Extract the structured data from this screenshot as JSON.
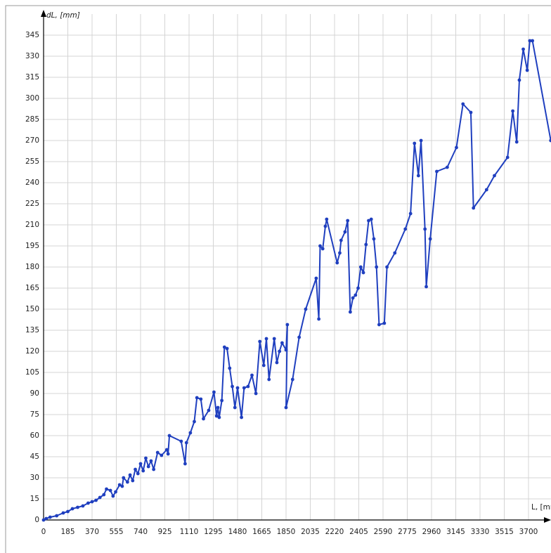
{
  "chart_data": {
    "type": "line",
    "x_label": "L, [mm",
    "y_label": "dL, [mm]",
    "xlim": [
      0,
      3870
    ],
    "ylim": [
      0,
      360
    ],
    "grid": true,
    "xticks": [
      0,
      185,
      370,
      555,
      740,
      925,
      1110,
      1295,
      1480,
      1665,
      1850,
      2035,
      2220,
      2405,
      2590,
      2775,
      2960,
      3145,
      3330,
      3515,
      3700
    ],
    "yticks": [
      0,
      15,
      30,
      45,
      60,
      75,
      90,
      105,
      120,
      135,
      150,
      165,
      180,
      195,
      210,
      225,
      240,
      255,
      270,
      285,
      300,
      315,
      330,
      345
    ],
    "series": [
      {
        "color": "#1f3fbf",
        "x": [
          0,
          20,
          50,
          100,
          150,
          185,
          220,
          260,
          300,
          340,
          370,
          400,
          430,
          460,
          480,
          510,
          530,
          550,
          580,
          600,
          610,
          640,
          660,
          680,
          700,
          720,
          740,
          760,
          780,
          800,
          820,
          840,
          870,
          900,
          940,
          950,
          960,
          1050,
          1080,
          1090,
          1120,
          1150,
          1170,
          1200,
          1220,
          1260,
          1300,
          1320,
          1330,
          1340,
          1360,
          1380,
          1400,
          1420,
          1440,
          1460,
          1480,
          1510,
          1530,
          1560,
          1590,
          1620,
          1650,
          1680,
          1700,
          1720,
          1760,
          1780,
          1800,
          1820,
          1850,
          1860,
          1850,
          1900,
          1950,
          2000,
          2080,
          2100,
          2110,
          2130,
          2150,
          2160,
          2240,
          2260,
          2270,
          2300,
          2320,
          2340,
          2360,
          2380,
          2400,
          2420,
          2440,
          2460,
          2480,
          2500,
          2520,
          2540,
          2560,
          2600,
          2620,
          2680,
          2760,
          2800,
          2830,
          2860,
          2880,
          2910,
          2920,
          2950,
          3000,
          3080,
          3150,
          3200,
          3260,
          3280,
          3380,
          3440,
          3540,
          3580,
          3610,
          3630,
          3660,
          3690,
          3710,
          3730,
          3870
        ],
        "values": [
          0,
          1,
          2,
          3,
          5,
          6,
          8,
          9,
          10,
          12,
          13,
          14,
          16,
          18,
          22,
          21,
          17,
          20,
          25,
          24,
          30,
          27,
          32,
          28,
          36,
          33,
          40,
          35,
          44,
          38,
          42,
          36,
          48,
          46,
          50,
          47,
          60,
          56,
          40,
          55,
          62,
          70,
          87,
          86,
          72,
          78,
          91,
          74,
          80,
          73,
          85,
          123,
          122,
          108,
          95,
          80,
          94,
          73,
          94,
          95,
          103,
          90,
          127,
          110,
          129,
          100,
          129,
          112,
          120,
          126,
          121,
          139,
          80,
          100,
          130,
          150,
          172,
          143,
          195,
          193,
          209,
          214,
          183,
          190,
          199,
          205,
          213,
          148,
          158,
          160,
          165,
          180,
          176,
          196,
          213,
          214,
          200,
          180,
          139,
          140,
          180,
          190,
          207,
          218,
          268,
          245,
          270,
          207,
          166,
          200,
          248,
          251,
          265,
          296,
          290,
          222,
          235,
          245,
          258,
          291,
          269,
          313,
          335,
          320,
          341,
          341,
          270
        ]
      }
    ]
  }
}
